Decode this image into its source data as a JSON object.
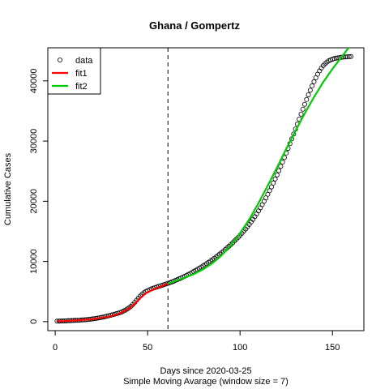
{
  "chart_data": {
    "type": "scatter",
    "title": "Ghana / Gompertz",
    "xlabel": "Days since 2020-03-25",
    "xlabel_sub": "Simple Moving Avarage (window size = 7)",
    "ylabel": "Cumulative Cases",
    "xlim": [
      -4,
      167
    ],
    "ylim": [
      -1500,
      45500
    ],
    "x_ticks": [
      0,
      50,
      100,
      150
    ],
    "y_ticks": [
      0,
      10000,
      20000,
      30000,
      40000
    ],
    "vline_x": 61,
    "legend": {
      "placement": "top-left",
      "entries": [
        {
          "label": "data",
          "symbol": "circle",
          "color": "#000000"
        },
        {
          "label": "fit1",
          "symbol": "line",
          "color": "#ff0000"
        },
        {
          "label": "fit2",
          "symbol": "line",
          "color": "#00cd00"
        }
      ]
    },
    "series": [
      {
        "name": "data",
        "kind": "points",
        "color": "#000000",
        "x": [
          1,
          2,
          3,
          4,
          5,
          6,
          7,
          8,
          9,
          10,
          11,
          12,
          13,
          14,
          15,
          16,
          17,
          18,
          19,
          20,
          21,
          22,
          23,
          24,
          25,
          26,
          27,
          28,
          29,
          30,
          31,
          32,
          33,
          34,
          35,
          36,
          37,
          38,
          39,
          40,
          41,
          42,
          43,
          44,
          45,
          46,
          47,
          48,
          49,
          50,
          51,
          52,
          53,
          54,
          55,
          56,
          57,
          58,
          59,
          60,
          61,
          62,
          63,
          64,
          65,
          66,
          67,
          68,
          69,
          70,
          71,
          72,
          73,
          74,
          75,
          76,
          77,
          78,
          79,
          80,
          81,
          82,
          83,
          84,
          85,
          86,
          87,
          88,
          89,
          90,
          91,
          92,
          93,
          94,
          95,
          96,
          97,
          98,
          99,
          100,
          101,
          102,
          103,
          104,
          105,
          106,
          107,
          108,
          109,
          110,
          111,
          112,
          113,
          114,
          115,
          116,
          117,
          118,
          119,
          120,
          121,
          122,
          123,
          124,
          125,
          126,
          127,
          128,
          129,
          130,
          131,
          132,
          133,
          134,
          135,
          136,
          137,
          138,
          139,
          140,
          141,
          142,
          143,
          144,
          145,
          146,
          147,
          148,
          149,
          150,
          151,
          152,
          153,
          154,
          155,
          156,
          157,
          158,
          159,
          160
        ],
        "y": [
          80,
          90,
          100,
          110,
          120,
          140,
          160,
          170,
          180,
          195,
          210,
          225,
          240,
          260,
          280,
          300,
          330,
          370,
          410,
          450,
          490,
          540,
          590,
          640,
          700,
          760,
          830,
          900,
          980,
          1060,
          1140,
          1220,
          1310,
          1400,
          1500,
          1620,
          1760,
          1920,
          2100,
          2300,
          2550,
          2850,
          3200,
          3550,
          3900,
          4250,
          4550,
          4800,
          5000,
          5150,
          5300,
          5430,
          5550,
          5660,
          5760,
          5860,
          5960,
          6060,
          6160,
          6260,
          6360,
          6460,
          6580,
          6700,
          6830,
          6960,
          7100,
          7240,
          7380,
          7530,
          7680,
          7840,
          8000,
          8170,
          8340,
          8510,
          8690,
          8870,
          9060,
          9250,
          9450,
          9650,
          9860,
          10070,
          10290,
          10510,
          10740,
          10980,
          11220,
          11470,
          11720,
          11980,
          12250,
          12520,
          12800,
          13090,
          13390,
          13700,
          14010,
          14340,
          14680,
          15030,
          15390,
          15760,
          16150,
          16560,
          16990,
          17440,
          17910,
          18400,
          18910,
          19440,
          19990,
          20560,
          21150,
          21760,
          22390,
          23040,
          23700,
          24380,
          25080,
          25790,
          26520,
          27260,
          28020,
          28790,
          29570,
          30370,
          31180,
          32000,
          32820,
          33650,
          34480,
          35300,
          36110,
          36910,
          37690,
          38450,
          39180,
          39870,
          40520,
          41120,
          41660,
          42130,
          42530,
          42860,
          43130,
          43340,
          43500,
          43620,
          43710,
          43780,
          43840,
          43890,
          43930,
          43960,
          43990,
          44010,
          44030,
          44050
        ]
      },
      {
        "name": "fit1",
        "kind": "line",
        "color": "#ff0000",
        "x": [
          1,
          5,
          10,
          15,
          20,
          25,
          30,
          35,
          40,
          43,
          46,
          49,
          52,
          55,
          58,
          61
        ],
        "y": [
          70,
          100,
          180,
          280,
          420,
          630,
          900,
          1380,
          2200,
          2950,
          3900,
          4700,
          5200,
          5600,
          5950,
          6350
        ]
      },
      {
        "name": "fit2",
        "kind": "line",
        "color": "#00cd00",
        "x": [
          61,
          65,
          70,
          75,
          80,
          85,
          90,
          95,
          100,
          105,
          110,
          115,
          120,
          125,
          130,
          135,
          140,
          145,
          150,
          155,
          158,
          160
        ],
        "y": [
          6300,
          6750,
          7300,
          7900,
          8700,
          9700,
          11000,
          12700,
          14700,
          17000,
          19700,
          22600,
          25600,
          28700,
          31700,
          34600,
          37300,
          39800,
          42000,
          44000,
          45200,
          46000
        ]
      }
    ]
  }
}
